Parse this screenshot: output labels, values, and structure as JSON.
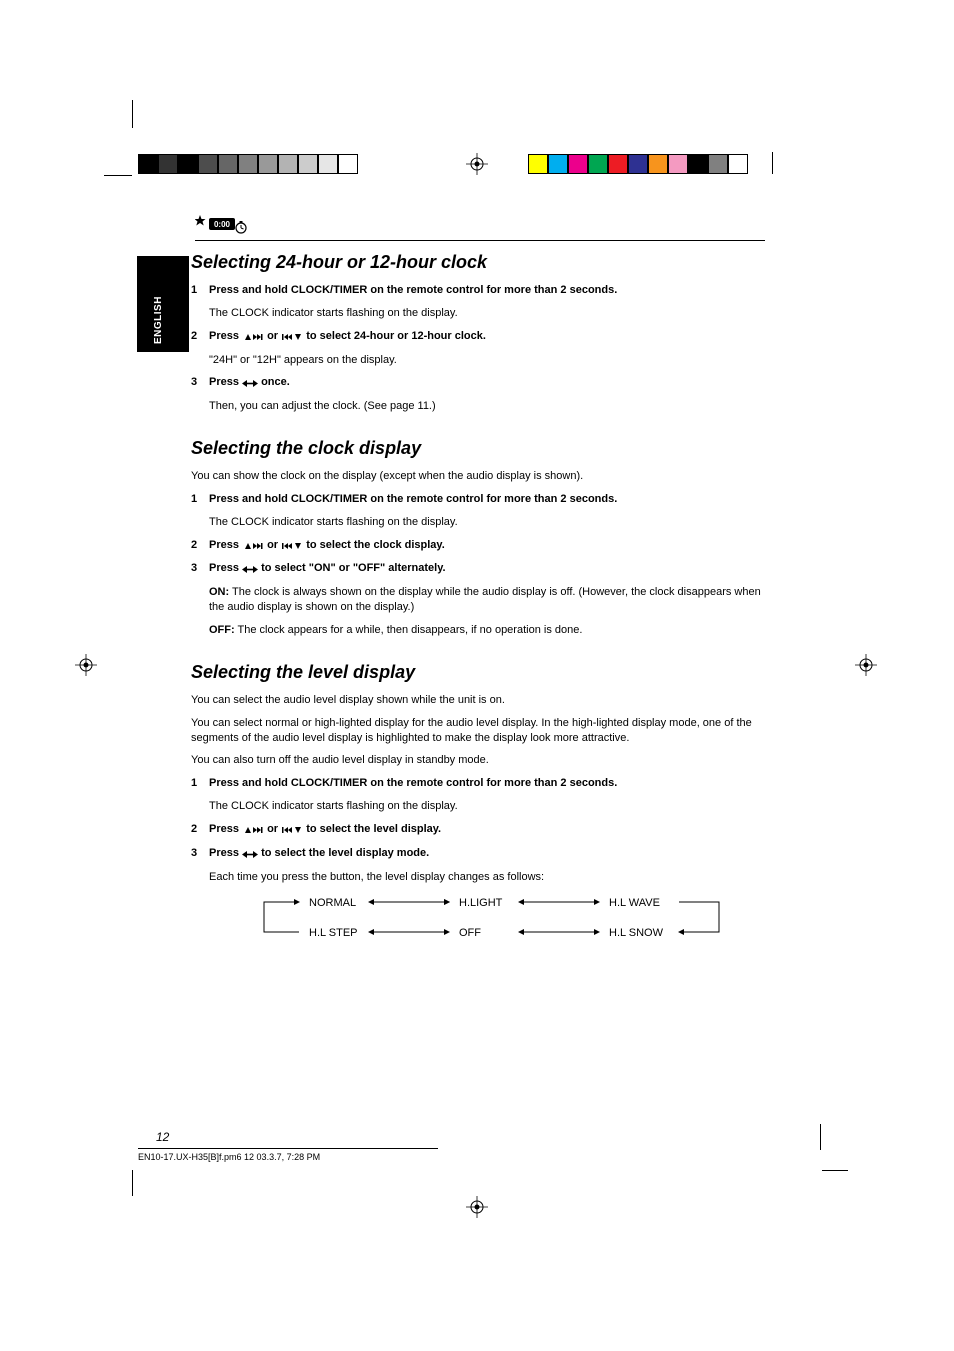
{
  "calibration": {
    "left_swatches": [
      "#000000",
      "#333333",
      "#000000",
      "#4d4d4d",
      "#666666",
      "#808080",
      "#999999",
      "#b3b3b3",
      "#cccccc",
      "#e6e6e6",
      "#ffffff"
    ],
    "left_borders": [
      "#000",
      "#000",
      "#000",
      "#000",
      "#000",
      "#000",
      "#000",
      "#000",
      "#000",
      "#000",
      "#000"
    ],
    "right_swatches": [
      "#ffff00",
      "#00aeef",
      "#ec008c",
      "#00a651",
      "#ed1c24",
      "#2e3192",
      "#f7941d",
      "#f49ac1",
      "#000000",
      "#808080",
      "#ffffff"
    ],
    "right_borders": [
      "#000",
      "#000",
      "#000",
      "#000",
      "#000",
      "#000",
      "#000",
      "#000",
      "#000",
      "#000",
      "#000"
    ]
  },
  "side_tab_label": "ENGLISH",
  "page_number": "12",
  "footer": "EN10-17.UX-H35[B]f.pm6            12                                                                03.3.7, 7:28 PM",
  "section1": {
    "title": "Selecting 24-hour or 12-hour clock",
    "step1_label": "1",
    "step1_text": "Press and hold CLOCK/TIMER on the remote control for more than 2 seconds.",
    "step1_after": "The CLOCK indicator starts flashing on the display.",
    "step2_label": "2",
    "step2_pre": "Press ",
    "step2_mid": " or ",
    "step2_post": " to select 24-hour or 12-hour clock.",
    "step2_after": "\"24H\" or \"12H\" appears on the display.",
    "step3_label": "3",
    "step3_pre": "Press ",
    "step3_post": " once.",
    "step3_after": "Then, you can adjust the clock. (See page 11.)"
  },
  "section2": {
    "title": "Selecting the clock display",
    "intro": "You can show the clock on the display (except when the audio display is shown).",
    "step1_label": "1",
    "step1_text": "Press and hold CLOCK/TIMER on the remote control for more than 2 seconds.",
    "step1_after": "The CLOCK indicator starts flashing on the display.",
    "step2_label": "2",
    "step2_pre": "Press ",
    "step2_mid": " or ",
    "step2_post": " to select the clock display.",
    "step3_label": "3",
    "step3_pre": "Press ",
    "step3_post": " to select \"ON\" or \"OFF\" alternately.",
    "on_label": "ON:",
    "on_text": "The clock is always shown on the display while the audio display is off. (However, the clock disappears when the audio display is shown on the display.)",
    "off_label": "OFF:",
    "off_text": "The clock appears for a while, then disappears, if no operation is done."
  },
  "section3": {
    "title": "Selecting the level display",
    "intro1": "You can select the audio level display shown while the unit is on.",
    "intro2": "You can select normal or high-lighted display for the audio level display. In the high-lighted display mode, one of the segments of the audio level display is highlighted to make the display look more attractive.",
    "intro3": "You can also turn off the audio level display in standby mode.",
    "step1_label": "1",
    "step1_text": "Press and hold CLOCK/TIMER on the remote control for more than 2 seconds.",
    "step1_after": "The CLOCK indicator starts flashing on the display.",
    "step2_label": "2",
    "step2_pre": "Press ",
    "step2_mid": " or ",
    "step2_post": " to select the level display.",
    "step3_label": "3",
    "step3_pre": "Press ",
    "step3_post": " to select the level display mode.",
    "step3_after": "Each time you press the button, the level display changes as follows:",
    "flow": {
      "n1": "NORMAL",
      "n2": "H.LIGHT",
      "n3": "H.L WAVE",
      "n4": "H.L SNOW",
      "n5": "OFF",
      "n6": "H.L STEP"
    }
  }
}
